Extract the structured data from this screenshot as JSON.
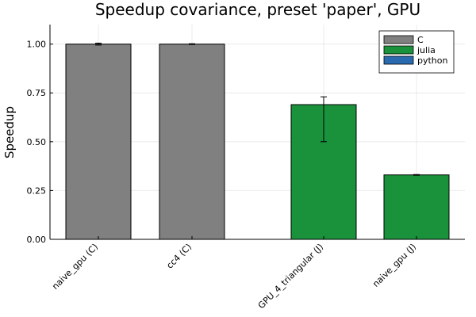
{
  "chart_data": {
    "type": "bar",
    "title": "Speedup covariance, preset 'paper', GPU",
    "xlabel": "",
    "ylabel": "Speedup",
    "ylim": [
      0,
      1.1
    ],
    "yticks": [
      0.0,
      0.25,
      0.5,
      0.75,
      1.0
    ],
    "ytick_labels": [
      "0.00",
      "0.25",
      "0.50",
      "0.75",
      "1.00"
    ],
    "grid": true,
    "legend_position": "top-right",
    "series": [
      {
        "name": "C",
        "color": "#808080"
      },
      {
        "name": "julia",
        "color": "#1a923c"
      },
      {
        "name": "python",
        "color": "#2a6bb0"
      }
    ],
    "bars": [
      {
        "category": "naive_gpu (C)",
        "series": "C",
        "value": 1.0,
        "err_low": 0.995,
        "err_high": 1.005
      },
      {
        "category": "cc4 (C)",
        "series": "C",
        "value": 1.0,
        "err_low": 0.998,
        "err_high": 1.002
      },
      {
        "category": "GPU_4_triangular (J)",
        "series": "julia",
        "value": 0.69,
        "err_low": 0.5,
        "err_high": 0.73
      },
      {
        "category": "naive_gpu (J)",
        "series": "julia",
        "value": 0.33,
        "err_low": 0.328,
        "err_high": 0.332
      }
    ]
  }
}
